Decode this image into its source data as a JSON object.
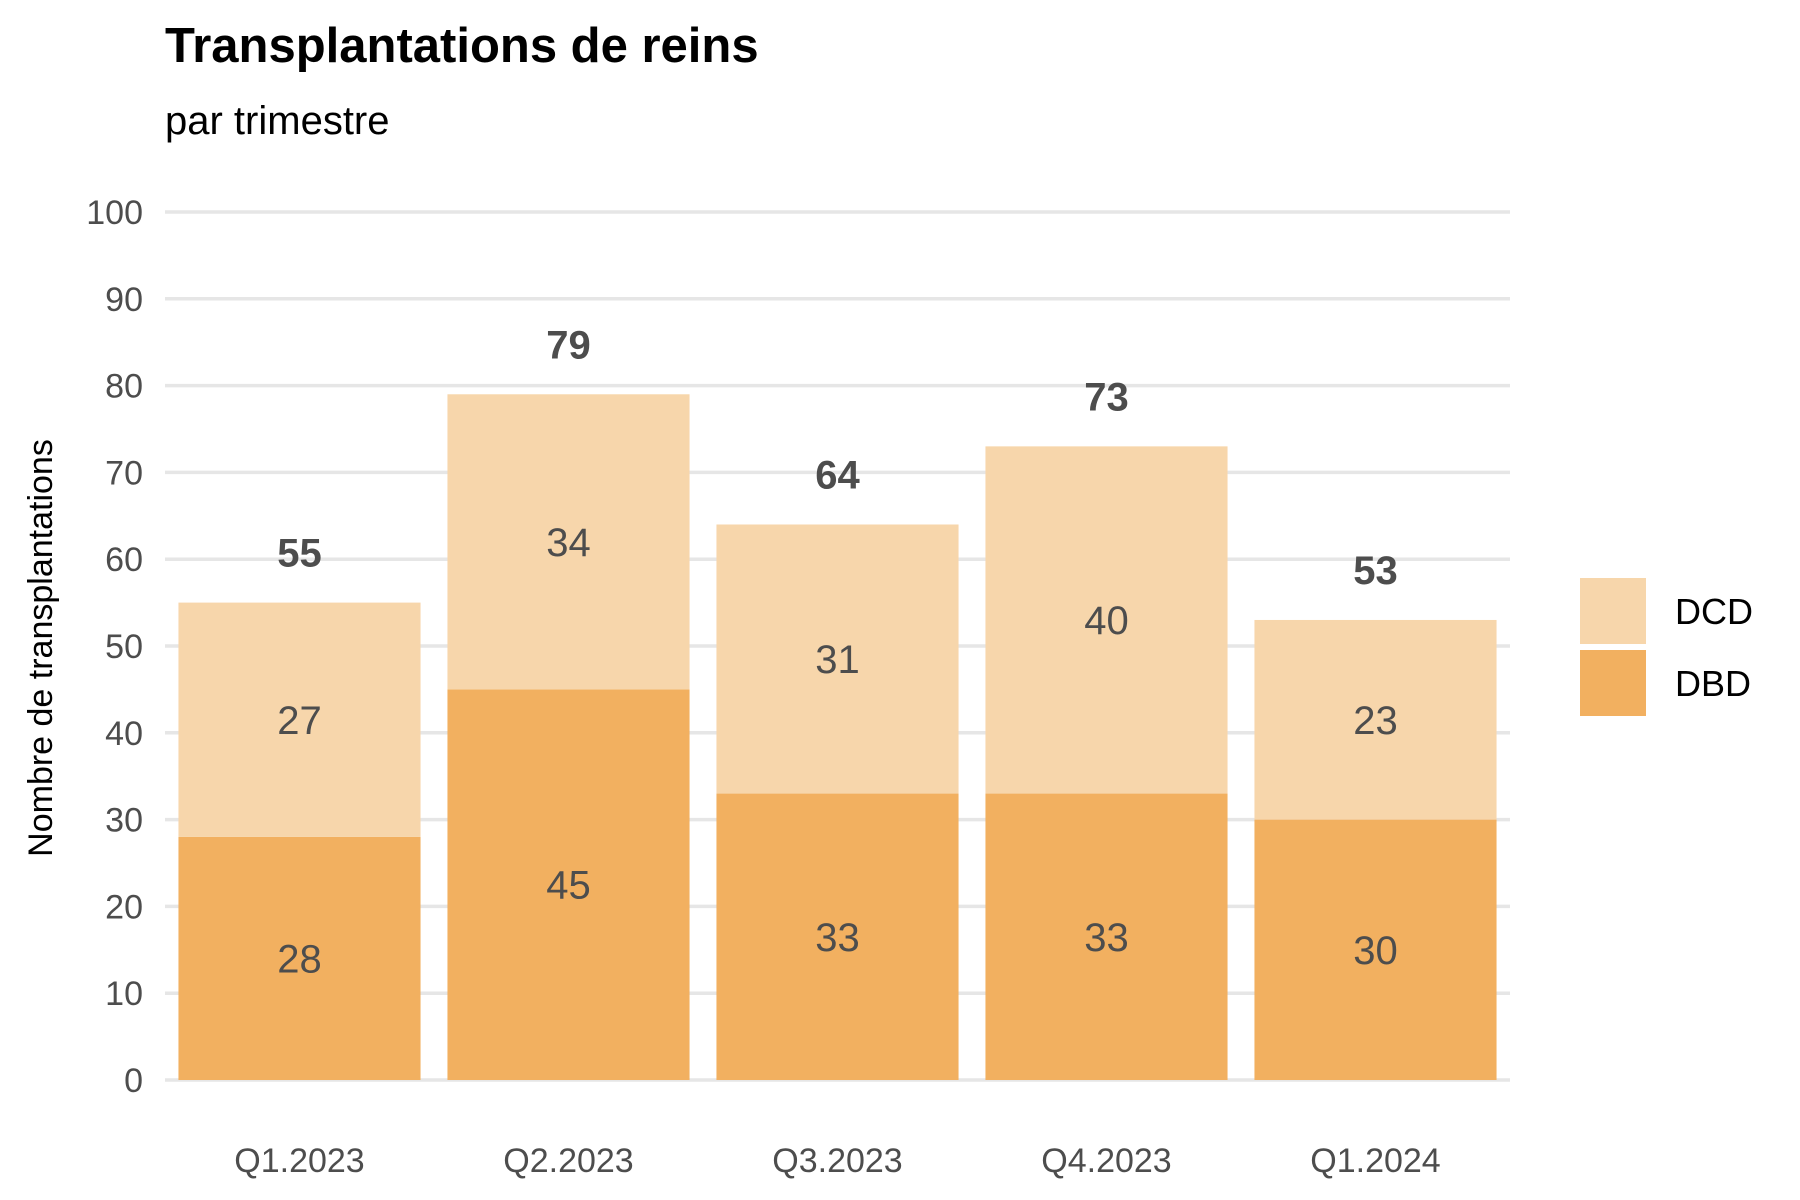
{
  "chart_data": {
    "type": "bar",
    "stacked": true,
    "title": "Transplantations de reins",
    "subtitle": "par trimestre",
    "xlabel": "",
    "ylabel": "Nombre de transplantations",
    "categories": [
      "Q1.2023",
      "Q2.2023",
      "Q3.2023",
      "Q4.2023",
      "Q1.2024"
    ],
    "series": [
      {
        "name": "DBD",
        "values": [
          28,
          45,
          33,
          33,
          30
        ],
        "color": "#F2B060"
      },
      {
        "name": "DCD",
        "values": [
          27,
          34,
          31,
          40,
          23
        ],
        "color": "#F7D6AB"
      }
    ],
    "totals": [
      55,
      79,
      64,
      73,
      53
    ],
    "ylim": [
      0,
      100
    ],
    "yticks": [
      0,
      10,
      20,
      30,
      40,
      50,
      60,
      70,
      80,
      90,
      100
    ],
    "grid": true,
    "legend": {
      "position": "right",
      "order": [
        "DCD",
        "DBD"
      ]
    }
  }
}
